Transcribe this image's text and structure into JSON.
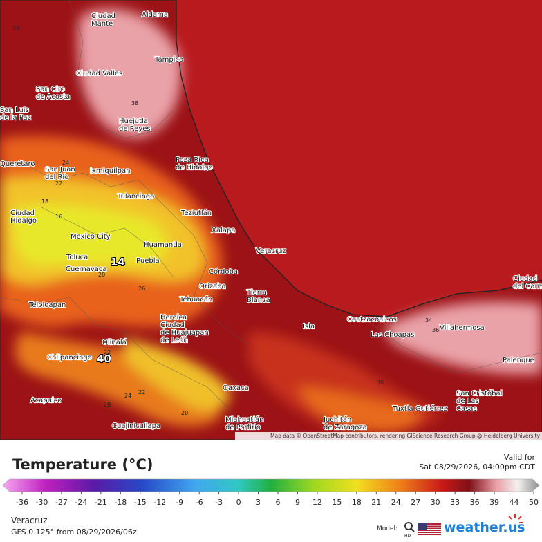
{
  "map": {
    "places": [
      [
        "Ciudad",
        "Mante"
      ],
      [
        "Aldama"
      ],
      [
        "Tampico"
      ],
      [
        "Ciudad Valles"
      ],
      [
        "San Ciro",
        "de Acosta"
      ],
      [
        "San Luis",
        "de la Paz"
      ],
      [
        "Huejutla",
        "de Reyes"
      ],
      [
        "Querétaro"
      ],
      [
        "San Juan",
        "del Río"
      ],
      [
        "Ixmiquilpan"
      ],
      [
        "Poza Rica",
        "de Hidalgo"
      ],
      [
        "Tulancingo"
      ],
      [
        "Teziutlán"
      ],
      [
        "Ciudad",
        "Hidalgo"
      ],
      [
        "Xalapa"
      ],
      [
        "Mexico City"
      ],
      [
        "Huamantla"
      ],
      [
        "Veracruz"
      ],
      [
        "Toluca"
      ],
      [
        "Puebla"
      ],
      [
        "Cuernavaca"
      ],
      [
        "Córdoba"
      ],
      [
        "Orizaba"
      ],
      [
        "Tierra",
        "Blanca"
      ],
      [
        "Tehuacán"
      ],
      [
        "Teloloapan"
      ],
      [
        "Heroica",
        "Ciudad",
        "de Huajuapan",
        "de León"
      ],
      [
        "Coatzacoalcos"
      ],
      [
        "Isla"
      ],
      [
        "Villahermosa"
      ],
      [
        "Las Choapas"
      ],
      [
        "Olinalá"
      ],
      [
        "Chilpancingo"
      ],
      [
        "Palenque"
      ],
      [
        "Oaxaca"
      ],
      [
        "San Cristóbal",
        "de Las",
        "Casas"
      ],
      [
        "Acapulco"
      ],
      [
        "Tuxtla Gutiérrez"
      ],
      [
        "Miahuatlán",
        "de Porfirio"
      ],
      [
        "Juchitán",
        "de Zaragoza"
      ],
      [
        "Cuajinicuilapa"
      ],
      [
        "Ciudad",
        "del Carmen"
      ]
    ],
    "contour_labels": [
      "28",
      "38",
      "24",
      "22",
      "18",
      "16",
      "20",
      "26",
      "28",
      "24",
      "22",
      "20",
      "36",
      "30",
      "34",
      "22"
    ],
    "extreme_labels": [
      "14",
      "40"
    ],
    "attribution": "Map data © OpenStreetMap contributors, rendering GIScience Research Group @ Heidelberg University"
  },
  "legend": {
    "title": "Temperature (°C)",
    "valid_label": "Valid for",
    "valid_time": "Sat 08/29/2026, 04:00pm CDT",
    "ticks": [
      -36,
      -30,
      -27,
      -24,
      -21,
      -18,
      -15,
      -12,
      -9,
      -6,
      -3,
      0,
      3,
      6,
      9,
      12,
      15,
      18,
      21,
      24,
      27,
      30,
      33,
      36,
      39,
      44,
      50
    ],
    "location": "Veracruz",
    "model_run": "GFS 0.125° from  08/29/2026/06z",
    "model_label": "Model:",
    "hd": "HD",
    "brand": "weather.us"
  }
}
